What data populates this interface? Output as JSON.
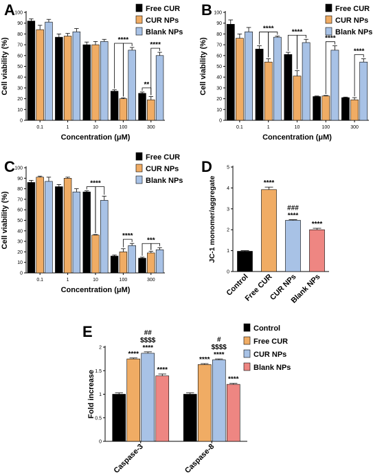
{
  "colors": {
    "free_cur": "#000000",
    "cur_nps": "#f0ac64",
    "blank_nps": "#a8c2e6",
    "control": "#000000",
    "blank_nps_red": "#ee8682"
  },
  "chart_data": [
    {
      "panel_label": "A",
      "type": "bar",
      "xlabel": "Concentration (μM)",
      "ylabel": "Cell viability (%)",
      "ylim": [
        0,
        100
      ],
      "yticks": [
        0,
        10,
        20,
        30,
        40,
        50,
        60,
        70,
        80,
        90,
        100
      ],
      "categories": [
        "0.1",
        "1",
        "10",
        "100",
        "300"
      ],
      "legend_position": "top-right",
      "series": [
        {
          "name": "Free CUR",
          "color": "#000000",
          "values": [
            92,
            77,
            70,
            27,
            25
          ],
          "errors": [
            2,
            3,
            2.5,
            1.2,
            1.2
          ]
        },
        {
          "name": "CUR NPs",
          "color": "#f0ac64",
          "values": [
            84,
            78,
            70,
            20,
            19
          ],
          "errors": [
            4,
            2.5,
            3,
            0.8,
            3
          ]
        },
        {
          "name": "Blank NPs",
          "color": "#a8c2e6",
          "values": [
            91,
            82,
            73,
            65,
            60
          ],
          "errors": [
            2.5,
            3,
            2,
            2.5,
            3
          ]
        }
      ],
      "significance": [
        {
          "category": 3,
          "pairs": [
            [
              0,
              1
            ],
            [
              1,
              2
            ]
          ],
          "label": "****"
        },
        {
          "category": 4,
          "pairs": [
            [
              0,
              1
            ]
          ],
          "label": "**"
        },
        {
          "category": 4,
          "pairs": [
            [
              1,
              2
            ]
          ],
          "label": "****"
        }
      ]
    },
    {
      "panel_label": "B",
      "type": "bar",
      "xlabel": "Concentration (μM)",
      "ylabel": "Cell viability (%)",
      "ylim": [
        0,
        100
      ],
      "yticks": [
        0,
        10,
        20,
        30,
        40,
        50,
        60,
        70,
        80,
        90,
        100
      ],
      "categories": [
        "0.1",
        "1",
        "10",
        "100",
        "300"
      ],
      "legend_position": "top-right",
      "series": [
        {
          "name": "Free CUR",
          "color": "#000000",
          "values": [
            89,
            66,
            61,
            22,
            21
          ],
          "errors": [
            4,
            3,
            2,
            0.5,
            0.5
          ]
        },
        {
          "name": "CUR NPs",
          "color": "#f0ac64",
          "values": [
            76,
            54,
            41,
            22.5,
            19
          ],
          "errors": [
            4,
            3,
            5,
            0.5,
            2
          ]
        },
        {
          "name": "Blank NPs",
          "color": "#a8c2e6",
          "values": [
            82,
            77,
            72,
            65,
            54
          ],
          "errors": [
            4,
            1,
            3,
            4,
            3
          ]
        }
      ],
      "significance": [
        {
          "category": 1,
          "pairs": [
            [
              0,
              1
            ],
            [
              1,
              2
            ]
          ],
          "label": "****"
        },
        {
          "category": 2,
          "pairs": [
            [
              0,
              1
            ],
            [
              1,
              2
            ]
          ],
          "label": "****"
        },
        {
          "category": 3,
          "pairs": [
            [
              1,
              2
            ]
          ],
          "label": "****"
        },
        {
          "category": 4,
          "pairs": [
            [
              1,
              2
            ]
          ],
          "label": "****"
        }
      ]
    },
    {
      "panel_label": "C",
      "type": "bar",
      "xlabel": "Concentration (μM)",
      "ylabel": "Cell viability (%)",
      "ylim": [
        0,
        100
      ],
      "yticks": [
        0,
        10,
        20,
        30,
        40,
        50,
        60,
        70,
        80,
        90,
        100
      ],
      "categories": [
        "0.1",
        "1",
        "10",
        "100",
        "300"
      ],
      "legend_position": "top-right",
      "series": [
        {
          "name": "Free CUR",
          "color": "#000000",
          "values": [
            86,
            82,
            77,
            16,
            14
          ],
          "errors": [
            2,
            2,
            1,
            1,
            1
          ]
        },
        {
          "name": "CUR NPs",
          "color": "#f0ac64",
          "values": [
            91,
            90,
            36,
            20,
            19
          ],
          "errors": [
            1,
            1,
            0.5,
            3,
            1.5
          ]
        },
        {
          "name": "Blank NPs",
          "color": "#a8c2e6",
          "values": [
            87,
            77,
            69,
            26,
            22
          ],
          "errors": [
            4,
            3,
            4,
            2,
            2
          ]
        }
      ],
      "significance": [
        {
          "category": 2,
          "pairs": [
            [
              0,
              1
            ],
            [
              1,
              2
            ]
          ],
          "label": "****"
        },
        {
          "category": 3,
          "pairs": [
            [
              1,
              2
            ]
          ],
          "label": "****"
        },
        {
          "category": 4,
          "pairs": [
            [
              0,
              1
            ],
            [
              1,
              2
            ]
          ],
          "label": "***"
        }
      ]
    },
    {
      "panel_label": "D",
      "type": "bar",
      "xlabel": "",
      "ylabel": "JC-1 monomer/aggregate",
      "ylim": [
        0,
        5
      ],
      "yticks": [
        0,
        1,
        2,
        3,
        4,
        5
      ],
      "categories": [
        "Control",
        "Free CUR",
        "CUR NPs",
        "Blank NPs"
      ],
      "colors": [
        "#000000",
        "#f0ac64",
        "#a8c2e6",
        "#ee8682"
      ],
      "values": [
        0.97,
        3.92,
        2.45,
        2.0
      ],
      "errors": [
        0.03,
        0.12,
        0.03,
        0.07
      ],
      "bar_annotations": [
        [],
        [
          "****"
        ],
        [
          "###",
          "****"
        ],
        [
          "****"
        ]
      ]
    },
    {
      "panel_label": "E",
      "type": "bar",
      "xlabel": "",
      "ylabel": "Fold increase",
      "ylim": [
        0,
        2.0
      ],
      "yticks": [
        0.0,
        0.5,
        1.0,
        1.5,
        2.0
      ],
      "categories": [
        "Caspase-3",
        "Caspase-8"
      ],
      "legend_position": "right",
      "series": [
        {
          "name": "Control",
          "color": "#000000",
          "values": [
            1.0,
            1.0
          ],
          "errors": [
            0.03,
            0.03
          ]
        },
        {
          "name": "Free CUR",
          "color": "#f0ac64",
          "values": [
            1.75,
            1.63
          ],
          "errors": [
            0.02,
            0.02
          ]
        },
        {
          "name": "CUR NPs",
          "color": "#a8c2e6",
          "values": [
            1.87,
            1.73
          ],
          "errors": [
            0.03,
            0.02
          ]
        },
        {
          "name": "Blank NPs",
          "color": "#ee8682",
          "values": [
            1.39,
            1.21
          ],
          "errors": [
            0.04,
            0.02
          ]
        }
      ],
      "bar_annotations": [
        [
          [],
          [
            "****"
          ],
          [
            "##",
            "$$$$",
            "****"
          ],
          [
            "****"
          ]
        ],
        [
          [],
          [
            "****"
          ],
          [
            "#",
            "$$$$",
            "****"
          ],
          [
            "****"
          ]
        ]
      ]
    }
  ]
}
